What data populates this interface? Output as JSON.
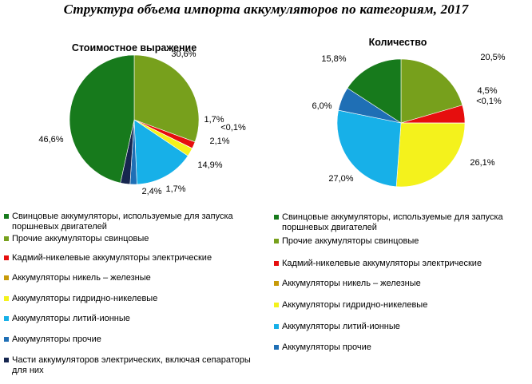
{
  "title": "Структура объема импорта аккумуляторов по категориям, 2017",
  "chart_data": [
    {
      "type": "pie",
      "title": "Стоимостное выражение",
      "slices": [
        {
          "category": "Прочие аккумуляторы свинцовые",
          "value": 30.6,
          "label": "30,6%",
          "color": "#77a01c"
        },
        {
          "category": "Кадмий-никелевые аккумуляторы электрические",
          "value": 1.7,
          "label": "1,7%",
          "color": "#e60e0e"
        },
        {
          "category": "Аккумуляторы никель – железные",
          "value": 0.05,
          "label": "<0,1%",
          "color": "#c79a08"
        },
        {
          "category": "Аккумуляторы гидридно-никелевые",
          "value": 2.1,
          "label": "2,1%",
          "color": "#f4f21c"
        },
        {
          "category": "Аккумуляторы литий-ионные",
          "value": 14.9,
          "label": "14,9%",
          "color": "#17b0e8"
        },
        {
          "category": "Аккумуляторы прочие",
          "value": 1.7,
          "label": "1,7%",
          "color": "#1f6fb5"
        },
        {
          "category": "Части аккумуляторов электрических, включая сепараторы для них",
          "value": 2.4,
          "label": "2,4%",
          "color": "#16264f"
        },
        {
          "category": "Свинцовые аккумуляторы, используемые для запуска поршневых двигателей",
          "value": 46.6,
          "label": "46,6%",
          "color": "#177a1c"
        }
      ]
    },
    {
      "type": "pie",
      "title": "Количество",
      "slices": [
        {
          "category": "Прочие аккумуляторы свинцовые",
          "value": 20.5,
          "label": "20,5%",
          "color": "#77a01c"
        },
        {
          "category": "Кадмий-никелевые аккумуляторы электрические",
          "value": 4.5,
          "label": "4,5%",
          "color": "#e60e0e"
        },
        {
          "category": "Аккумуляторы никель – железные",
          "value": 0.05,
          "label": "<0,1%",
          "color": "#c79a08"
        },
        {
          "category": "Аккумуляторы гидридно-никелевые",
          "value": 26.1,
          "label": "26,1%",
          "color": "#f4f21c"
        },
        {
          "category": "Аккумуляторы литий-ионные",
          "value": 27.0,
          "label": "27,0%",
          "color": "#17b0e8"
        },
        {
          "category": "Аккумуляторы прочие",
          "value": 6.0,
          "label": "6,0%",
          "color": "#1f6fb5"
        },
        {
          "category": "Свинцовые аккумуляторы, используемые для запуска поршневых двигателей",
          "value": 15.8,
          "label": "15,8%",
          "color": "#177a1c"
        }
      ]
    }
  ],
  "legends": [
    {
      "items": [
        {
          "label": "Свинцовые аккумуляторы, используемые для запуска поршневых двигателей",
          "color": "#177a1c"
        },
        {
          "label": "Прочие аккумуляторы свинцовые",
          "color": "#77a01c"
        },
        {
          "label": "Кадмий-никелевые аккумуляторы электрические",
          "color": "#e60e0e"
        },
        {
          "label": "Аккумуляторы никель – железные",
          "color": "#c79a08"
        },
        {
          "label": "Аккумуляторы гидридно-никелевые",
          "color": "#f4f21c"
        },
        {
          "label": "Аккумуляторы литий-ионные",
          "color": "#17b0e8"
        },
        {
          "label": "Аккумуляторы прочие",
          "color": "#1f6fb5"
        },
        {
          "label": "Части аккумуляторов электрических, включая сепараторы для них",
          "color": "#16264f"
        }
      ]
    },
    {
      "items": [
        {
          "label": "Свинцовые аккумуляторы, используемые для запуска поршневых двигателей",
          "color": "#177a1c"
        },
        {
          "label": "Прочие аккумуляторы свинцовые",
          "color": "#77a01c"
        },
        {
          "label": "Кадмий-никелевые аккумуляторы электрические",
          "color": "#e60e0e"
        },
        {
          "label": "Аккумуляторы никель – железные",
          "color": "#c79a08"
        },
        {
          "label": "Аккумуляторы гидридно-никелевые",
          "color": "#f4f21c"
        },
        {
          "label": "Аккумуляторы литий-ионные",
          "color": "#17b0e8"
        },
        {
          "label": "Аккумуляторы прочие",
          "color": "#1f6fb5"
        }
      ]
    }
  ]
}
